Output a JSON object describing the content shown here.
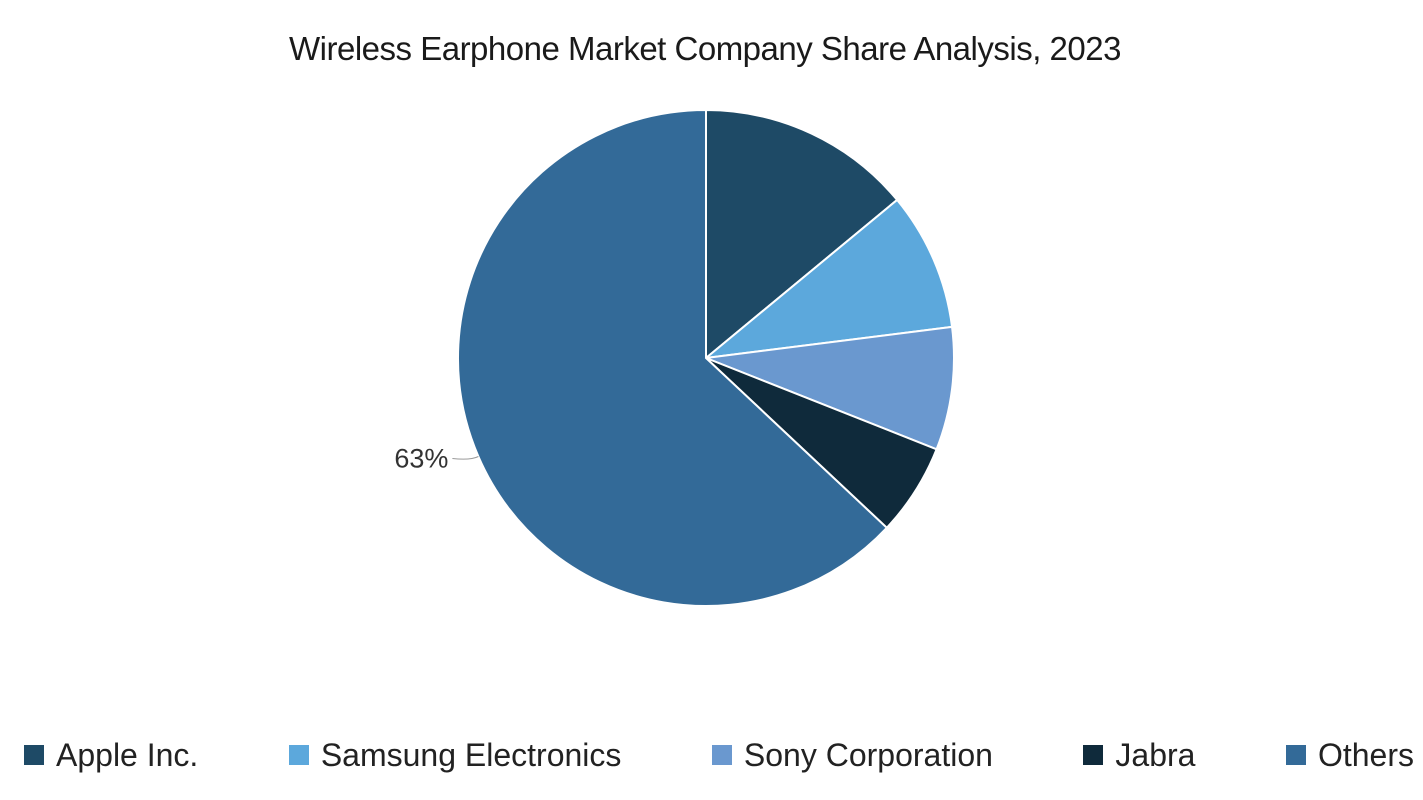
{
  "chart_data": {
    "type": "pie",
    "title": "Wireless Earphone Market Company Share Analysis, 2023",
    "legend_position": "bottom",
    "start_angle_deg": 0,
    "direction": "clockwise",
    "slices": [
      {
        "label": "Apple Inc.",
        "value": 14,
        "color": "#1e4a66",
        "data_label": ""
      },
      {
        "label": "Samsung Electronics",
        "value": 9,
        "color": "#5ca8dc",
        "data_label": ""
      },
      {
        "label": "Sony Corporation",
        "value": 8,
        "color": "#6a98cf",
        "data_label": ""
      },
      {
        "label": "Jabra",
        "value": 6,
        "color": "#0f2a3b",
        "data_label": ""
      },
      {
        "label": "Others",
        "value": 63,
        "color": "#336a98",
        "data_label": "63%"
      }
    ]
  }
}
